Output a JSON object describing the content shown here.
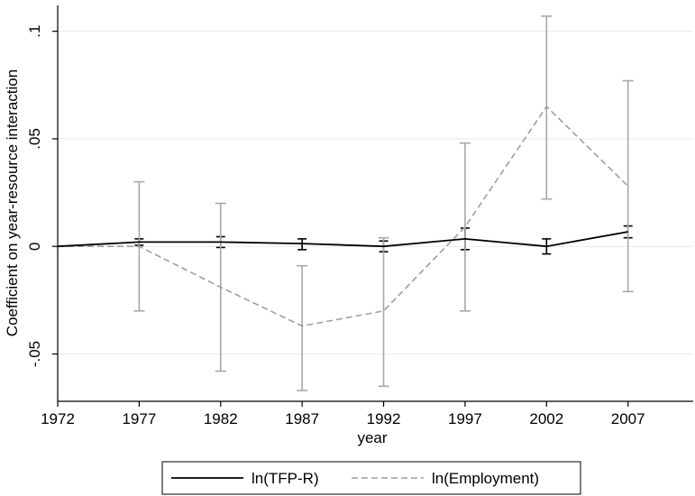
{
  "chart_data": {
    "type": "line",
    "title": "",
    "xlabel": "year",
    "ylabel": "Coefficient on year-resource interaction",
    "x": [
      1972,
      1977,
      1982,
      1987,
      1992,
      1997,
      2002,
      2007
    ],
    "xlim": [
      1972,
      2011
    ],
    "ylim": [
      -0.072,
      0.112
    ],
    "xticks": [
      1972,
      1977,
      1982,
      1987,
      1992,
      1997,
      2002,
      2007
    ],
    "xtick_labels": [
      "1972",
      "1977",
      "1982",
      "1987",
      "1992",
      "1997",
      "2002",
      "2007"
    ],
    "yticks": [
      -0.05,
      0,
      0.05,
      0.1
    ],
    "ytick_labels": [
      "-.05",
      "0",
      ".05",
      ".1"
    ],
    "grid": true,
    "legend_position": "bottom",
    "series": [
      {
        "name": "ln(TFP-R)",
        "style": "solid",
        "color": "#000000",
        "values": [
          0,
          0.002,
          0.002,
          0.0013,
          0,
          0.0035,
          0,
          0.0068
        ],
        "ci_low": [
          null,
          0.0005,
          -0.0005,
          -0.0015,
          -0.0025,
          -0.0015,
          -0.0035,
          0.004
        ],
        "ci_high": [
          null,
          0.0035,
          0.0045,
          0.0035,
          0.0025,
          0.0085,
          0.0035,
          0.0095
        ]
      },
      {
        "name": "ln(Employment)",
        "style": "dashed",
        "color": "#9e9e9e",
        "values": [
          0,
          0,
          -0.019,
          -0.037,
          -0.03,
          0.009,
          0.065,
          0.028
        ],
        "ci_low": [
          null,
          -0.03,
          -0.058,
          -0.067,
          -0.065,
          -0.03,
          0.022,
          -0.021
        ],
        "ci_high": [
          null,
          0.03,
          0.02,
          -0.009,
          0.004,
          0.048,
          0.107,
          0.077
        ]
      }
    ]
  }
}
